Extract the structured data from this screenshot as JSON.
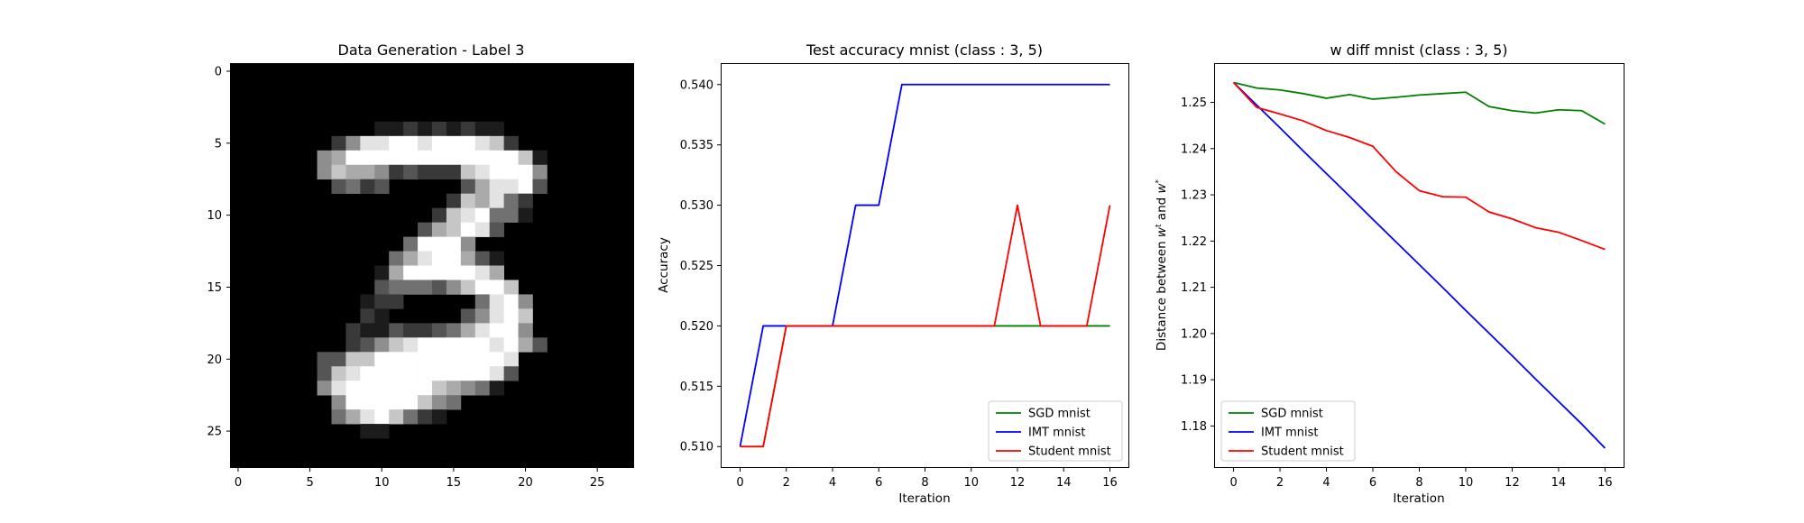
{
  "colors": {
    "SGD mnist": "#008000",
    "IMT mnist": "#0000ff",
    "Student mnist": "#ff0000"
  },
  "chart_data": [
    {
      "type": "heatmap",
      "title": "Data Generation - Label 3",
      "xlabel": "",
      "ylabel": "",
      "colormap": "gray",
      "grid": false,
      "xlim": [
        -0.5,
        27.5
      ],
      "ylim": [
        27.5,
        -0.5
      ],
      "xticks": [
        0,
        5,
        10,
        15,
        20,
        25
      ],
      "yticks": [
        0,
        5,
        10,
        15,
        20,
        25
      ],
      "xtick_labels": [
        "0",
        "5",
        "10",
        "15",
        "20",
        "25"
      ],
      "ytick_labels": [
        "0",
        "5",
        "10",
        "15",
        "20",
        "25"
      ],
      "rows": 28,
      "cols": 28,
      "value_range": [
        0,
        9
      ],
      "pixels": [
        "............................",
        "............................",
        "............................",
        "............................",
        "..........112121211.........",
        ".......2588998999872........",
        "......5699999999999971......",
        "......5766523222789995......",
        ".......3423.....368893......",
        "...............276842.......",
        "..............2789441.......",
        ".............367983.........",
        "............49995...........",
        "...........46899631.........",
        "..........169999986.........",
        "..........3444357997........",
        ".........122.....4895.......",
        ".........21.....35897.......",
        "........2113223468995.......",
        "........23578999998963......",
        "......33779999999998........",
        "......37899999999983........",
        "......5899999976541.........",
        ".......599999754............",
        ".......46897421.............",
        ".........11.................",
        "............................",
        "............................"
      ]
    },
    {
      "type": "line",
      "title": "Test accuracy mnist (class : 3, 5)",
      "xlabel": "Iteration",
      "ylabel": "Accuracy",
      "xlim": [
        -0.8,
        16.8
      ],
      "ylim": [
        0.5083,
        0.5417
      ],
      "xticks": [
        0,
        2,
        4,
        6,
        8,
        10,
        12,
        14,
        16
      ],
      "yticks": [
        0.51,
        0.515,
        0.52,
        0.525,
        0.53,
        0.535,
        0.54
      ],
      "xtick_labels": [
        "0",
        "2",
        "4",
        "6",
        "8",
        "10",
        "12",
        "14",
        "16"
      ],
      "ytick_labels": [
        "0.510",
        "0.515",
        "0.520",
        "0.525",
        "0.530",
        "0.535",
        "0.540"
      ],
      "grid": false,
      "legend": "lower-right",
      "x": [
        0,
        1,
        2,
        3,
        4,
        5,
        6,
        7,
        8,
        9,
        10,
        11,
        12,
        13,
        14,
        15,
        16
      ],
      "series": [
        {
          "name": "SGD mnist",
          "values": [
            0.51,
            0.51,
            0.52,
            0.52,
            0.52,
            0.52,
            0.52,
            0.52,
            0.52,
            0.52,
            0.52,
            0.52,
            0.52,
            0.52,
            0.52,
            0.52,
            0.52
          ]
        },
        {
          "name": "IMT mnist",
          "values": [
            0.51,
            0.52,
            0.52,
            0.52,
            0.52,
            0.53,
            0.53,
            0.54,
            0.54,
            0.54,
            0.54,
            0.54,
            0.54,
            0.54,
            0.54,
            0.54,
            0.54
          ]
        },
        {
          "name": "Student mnist",
          "values": [
            0.51,
            0.51,
            0.52,
            0.52,
            0.52,
            0.52,
            0.52,
            0.52,
            0.52,
            0.52,
            0.52,
            0.52,
            0.53,
            0.52,
            0.52,
            0.52,
            0.53
          ]
        }
      ]
    },
    {
      "type": "line",
      "title": "w diff mnist (class : 3, 5)",
      "xlabel": "Iteration",
      "ylabel": "Distance between w^t and w^*",
      "ylabel_parts": [
        "Distance between ",
        "w",
        "t",
        " and ",
        "w",
        "*"
      ],
      "xlim": [
        -0.8,
        16.8
      ],
      "ylim": [
        1.1711,
        1.2583
      ],
      "xticks": [
        0,
        2,
        4,
        6,
        8,
        10,
        12,
        14,
        16
      ],
      "yticks": [
        1.18,
        1.19,
        1.2,
        1.21,
        1.22,
        1.23,
        1.24,
        1.25
      ],
      "xtick_labels": [
        "0",
        "2",
        "4",
        "6",
        "8",
        "10",
        "12",
        "14",
        "16"
      ],
      "ytick_labels": [
        "1.18",
        "1.19",
        "1.20",
        "1.21",
        "1.22",
        "1.23",
        "1.24",
        "1.25"
      ],
      "grid": false,
      "legend": "lower-left",
      "x": [
        0,
        1,
        2,
        3,
        4,
        5,
        6,
        7,
        8,
        9,
        10,
        11,
        12,
        13,
        14,
        15,
        16
      ],
      "series": [
        {
          "name": "SGD mnist",
          "values": [
            1.2543,
            1.2531,
            1.2527,
            1.2519,
            1.2509,
            1.2517,
            1.2507,
            1.2511,
            1.2516,
            1.2519,
            1.2522,
            1.2491,
            1.2482,
            1.2477,
            1.2484,
            1.2482,
            1.2453
          ]
        },
        {
          "name": "IMT mnist",
          "values": [
            1.2543,
            1.2494,
            1.2445,
            1.2395,
            1.2346,
            1.2297,
            1.2247,
            1.2198,
            1.2149,
            1.21,
            1.205,
            1.2001,
            1.1952,
            1.1902,
            1.1853,
            1.1804,
            1.1752
          ]
        },
        {
          "name": "Student mnist",
          "values": [
            1.2543,
            1.2489,
            1.2475,
            1.246,
            1.2439,
            1.2424,
            1.2405,
            1.235,
            1.2309,
            1.2296,
            1.2295,
            1.2263,
            1.2248,
            1.2229,
            1.2219,
            1.2201,
            1.2182
          ]
        }
      ]
    }
  ]
}
